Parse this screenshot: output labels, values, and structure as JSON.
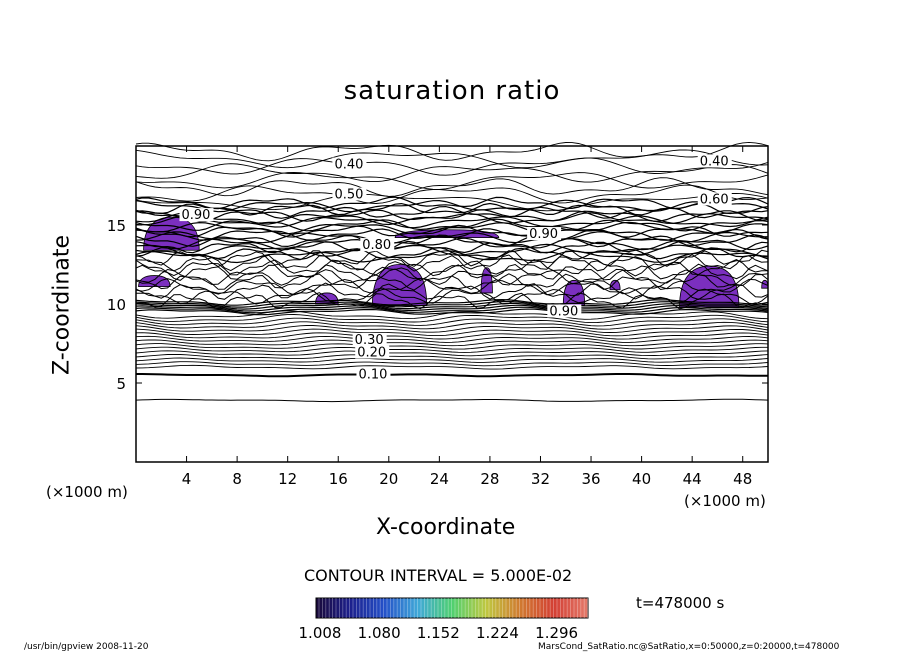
{
  "chart_data": {
    "type": "contour",
    "title": "saturation ratio",
    "xlabel": "X-coordinate",
    "ylabel": "Z-coordinate",
    "x_unit_label": "(×1000 m)",
    "z_unit_label": "(×1000 m)",
    "xlim": [
      0,
      50
    ],
    "ylim": [
      0,
      20
    ],
    "x_ticks": [
      "4",
      "8",
      "12",
      "16",
      "20",
      "24",
      "28",
      "32",
      "36",
      "40",
      "44",
      "48"
    ],
    "y_ticks": [
      "5",
      "10",
      "15"
    ],
    "contour_interval_text": "CONTOUR INTERVAL = 5.000E-02",
    "contour_labels": [
      {
        "text": "0.40",
        "x": 15.7,
        "z": 18.7
      },
      {
        "text": "0.40",
        "x": 44.6,
        "z": 18.9
      },
      {
        "text": "0.50",
        "x": 15.7,
        "z": 16.8
      },
      {
        "text": "0.60",
        "x": 44.6,
        "z": 16.5
      },
      {
        "text": "0.90",
        "x": 3.6,
        "z": 15.5
      },
      {
        "text": "0.90",
        "x": 31.1,
        "z": 14.3
      },
      {
        "text": "0.80",
        "x": 17.9,
        "z": 13.6
      },
      {
        "text": "0.90",
        "x": 32.7,
        "z": 9.4
      },
      {
        "text": "0.30",
        "x": 17.3,
        "z": 7.6
      },
      {
        "text": "0.20",
        "x": 17.5,
        "z": 6.8
      },
      {
        "text": "0.10",
        "x": 17.6,
        "z": 5.4
      }
    ],
    "supersaturated_regions": [
      {
        "x": [
          0.6,
          5.0
        ],
        "z": [
          13.4,
          15.5
        ]
      },
      {
        "x": [
          0.2,
          2.7
        ],
        "z": [
          11.1,
          11.8
        ]
      },
      {
        "x": [
          14.2,
          16.0
        ],
        "z": [
          10.0,
          10.7
        ]
      },
      {
        "x": [
          18.7,
          23.0
        ],
        "z": [
          9.9,
          12.5
        ]
      },
      {
        "x": [
          20.5,
          28.7
        ],
        "z": [
          14.2,
          14.7
        ]
      },
      {
        "x": [
          27.3,
          28.2
        ],
        "z": [
          10.7,
          12.3
        ]
      },
      {
        "x": [
          33.8,
          35.5
        ],
        "z": [
          9.9,
          11.5
        ]
      },
      {
        "x": [
          37.5,
          38.3
        ],
        "z": [
          10.9,
          11.5
        ]
      },
      {
        "x": [
          43.0,
          47.7
        ],
        "z": [
          9.8,
          12.4
        ]
      },
      {
        "x": [
          49.5,
          50.0
        ],
        "z": [
          11.0,
          11.5
        ]
      }
    ],
    "colorbar": {
      "ticks": [
        "1.008",
        "1.080",
        "1.152",
        "1.224",
        "1.296"
      ],
      "colors": [
        "#1a0a3a",
        "#1c1f8c",
        "#2450c8",
        "#3fa8d8",
        "#4fd070",
        "#bfc840",
        "#d07a30",
        "#d33f34",
        "#e47a6a"
      ]
    }
  },
  "time_text": "t=478000 s",
  "footer": {
    "left": "/usr/bin/gpview   2008-11-20",
    "right": "MarsCond_SatRatio.nc@SatRatio,x=0:50000,z=0:20000,t=478000"
  },
  "colors": {
    "fill": "#7b2fbf",
    "line": "#000000"
  }
}
